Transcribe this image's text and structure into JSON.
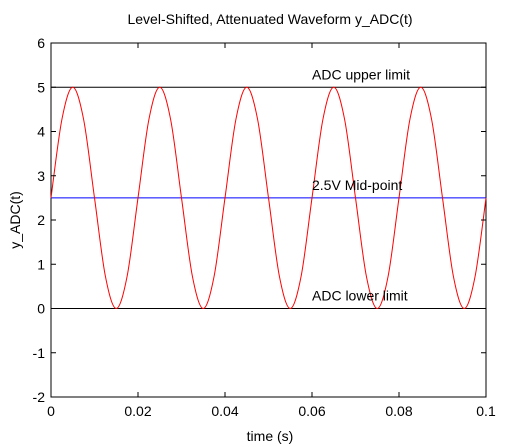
{
  "chart_data": {
    "type": "line",
    "title": "Level-Shifted, Attenuated Waveform y_ADC(t)",
    "xlabel": "time (s)",
    "ylabel": "y_ADC(t)",
    "xlim": [
      0,
      0.1
    ],
    "ylim": [
      -2,
      6
    ],
    "xticks": [
      0,
      0.02,
      0.04,
      0.06,
      0.08,
      0.1
    ],
    "xtick_labels": [
      "0",
      "0.02",
      "0.04",
      "0.06",
      "0.08",
      "0.1"
    ],
    "yticks": [
      -2,
      -1,
      0,
      1,
      2,
      3,
      4,
      5,
      6
    ],
    "ytick_labels": [
      "-2",
      "-1",
      "0",
      "1",
      "2",
      "3",
      "4",
      "5",
      "6"
    ],
    "grid": false,
    "series": [
      {
        "color": "#ff0000",
        "x": [
          0,
          0.0025,
          0.005,
          0.0075,
          0.01,
          0.0125,
          0.015,
          0.0175,
          0.02,
          0.0225,
          0.025,
          0.0275,
          0.03,
          0.0325,
          0.035,
          0.0375,
          0.04,
          0.0425,
          0.045,
          0.0475,
          0.05,
          0.0525,
          0.055,
          0.0575,
          0.06,
          0.0625,
          0.065,
          0.0675,
          0.07,
          0.0725,
          0.075,
          0.0775,
          0.08,
          0.0825,
          0.085,
          0.0875,
          0.09,
          0.0925,
          0.095,
          0.0975,
          0.1
        ],
        "y": [
          2.5,
          4.27,
          5.0,
          4.27,
          2.5,
          0.73,
          0.0,
          0.73,
          2.5,
          4.27,
          5.0,
          4.27,
          2.5,
          0.73,
          0.0,
          0.73,
          2.5,
          4.27,
          5.0,
          4.27,
          2.5,
          0.73,
          0.0,
          0.73,
          2.5,
          4.27,
          5.0,
          4.27,
          2.5,
          0.73,
          0.0,
          0.73,
          2.5,
          4.27,
          5.0,
          4.27,
          2.5,
          0.73,
          0.0,
          0.73,
          2.5
        ]
      }
    ],
    "reference_lines": [
      {
        "y": 5,
        "color": "#000000",
        "label": "ADC upper limit"
      },
      {
        "y": 2.5,
        "color": "#0000ff",
        "label": "2.5V Mid-point"
      },
      {
        "y": 0,
        "color": "#000000",
        "label": "ADC lower limit"
      }
    ]
  }
}
